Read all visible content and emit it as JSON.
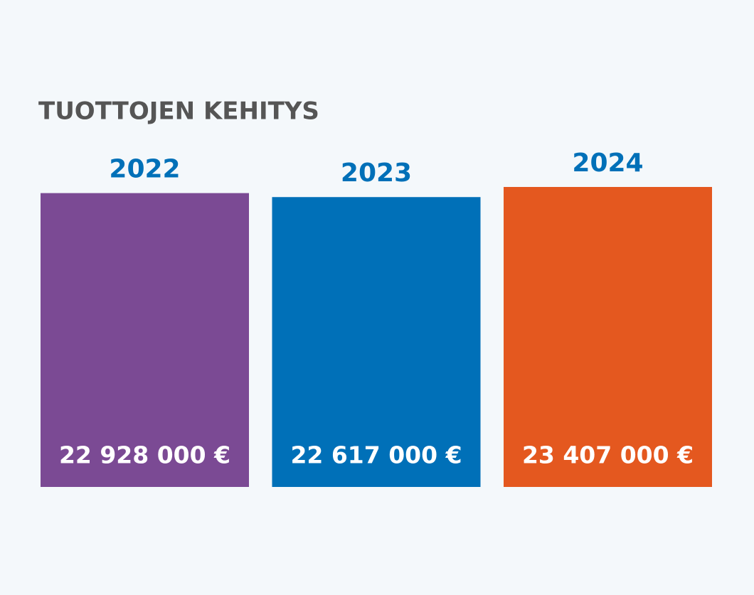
{
  "chart_data": {
    "type": "bar",
    "title": "TUOTTOJEN KEHITYS",
    "categories": [
      "2022",
      "2023",
      "2024"
    ],
    "values": [
      22928000,
      22617000,
      23407000
    ],
    "value_labels": [
      "22 928 000 €",
      "22 617 000 €",
      "23 407 000 €"
    ],
    "colors": [
      "#7b4a94",
      "#0070b8",
      "#e4581f"
    ]
  }
}
